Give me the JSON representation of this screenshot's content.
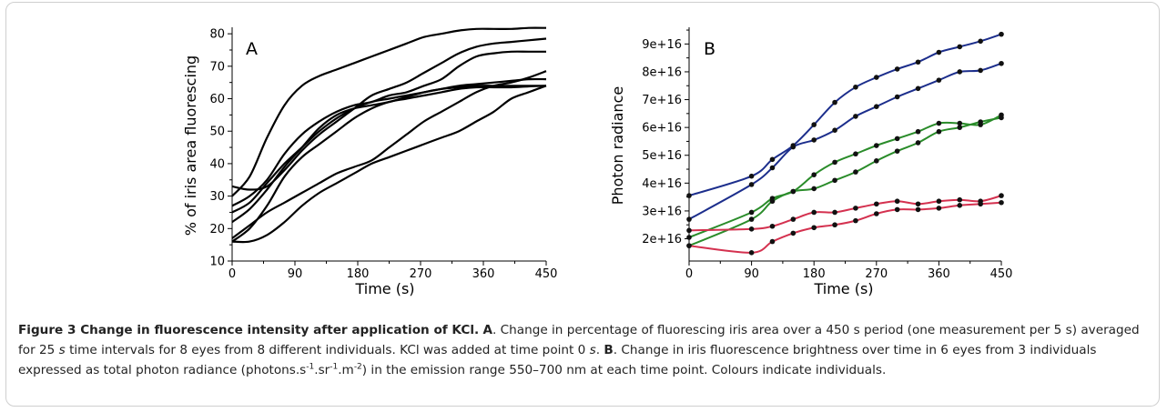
{
  "chart_data": [
    {
      "type": "line",
      "panel_label": "A",
      "xlabel": "Time (s)",
      "ylabel": "% of iris area fluorescing",
      "xlim": [
        0,
        450
      ],
      "ylim": [
        10,
        82
      ],
      "x_ticks": [
        0,
        90,
        180,
        270,
        360,
        450
      ],
      "y_ticks": [
        10,
        20,
        30,
        40,
        50,
        60,
        70,
        80
      ],
      "line_color": "#000000",
      "series": [
        {
          "x": [
            0,
            25,
            50,
            75,
            100,
            125,
            150,
            175,
            200,
            225,
            250,
            275,
            300,
            325,
            350,
            375,
            400,
            425,
            450
          ],
          "y": [
            30,
            36,
            48,
            58,
            64,
            67,
            69,
            71,
            73,
            75,
            77,
            79,
            80,
            81,
            81.5,
            81.5,
            81.5,
            81.8,
            81.8
          ]
        },
        {
          "x": [
            0,
            25,
            50,
            75,
            100,
            125,
            150,
            175,
            200,
            225,
            250,
            275,
            300,
            325,
            350,
            375,
            400,
            425,
            450
          ],
          "y": [
            33,
            32,
            33,
            38,
            44,
            49,
            53,
            57,
            61,
            63,
            65,
            68,
            71,
            74,
            76,
            77,
            77.5,
            78,
            78.5
          ]
        },
        {
          "x": [
            0,
            25,
            50,
            75,
            100,
            125,
            150,
            175,
            200,
            225,
            250,
            275,
            300,
            325,
            350,
            375,
            400,
            425,
            450
          ],
          "y": [
            27,
            30,
            35,
            43,
            49,
            53,
            56,
            58,
            59,
            61,
            62,
            64,
            66,
            70,
            73,
            74,
            74.5,
            74.5,
            74.5
          ]
        },
        {
          "x": [
            0,
            25,
            50,
            75,
            100,
            125,
            150,
            175,
            200,
            225,
            250,
            275,
            300,
            325,
            350,
            375,
            400,
            425,
            450
          ],
          "y": [
            25,
            28,
            34,
            40,
            45,
            50,
            54,
            57,
            59,
            60,
            61,
            62,
            63,
            64,
            64.5,
            65,
            65.5,
            66,
            66
          ]
        },
        {
          "x": [
            0,
            25,
            50,
            75,
            100,
            125,
            150,
            175,
            200,
            225,
            250,
            275,
            300,
            325,
            350,
            375,
            400,
            425,
            450
          ],
          "y": [
            22,
            26,
            32,
            39,
            45,
            51,
            55,
            57,
            58,
            59,
            60.5,
            62,
            63,
            63.5,
            64,
            64,
            64,
            64,
            64
          ]
        },
        {
          "x": [
            0,
            25,
            50,
            75,
            100,
            125,
            150,
            175,
            200,
            225,
            250,
            275,
            300,
            325,
            350,
            375,
            400,
            425,
            450
          ],
          "y": [
            16,
            20,
            27,
            36,
            42,
            46,
            50,
            54,
            57,
            59,
            60,
            61,
            62,
            63,
            63.5,
            63.5,
            63.5,
            63.8,
            64
          ]
        },
        {
          "x": [
            0,
            25,
            50,
            75,
            100,
            125,
            150,
            175,
            200,
            225,
            250,
            275,
            300,
            325,
            350,
            375,
            400,
            425,
            450
          ],
          "y": [
            17,
            21,
            25,
            28,
            31,
            34,
            37,
            39,
            41,
            45,
            49,
            53,
            56,
            59,
            62,
            64,
            65,
            66.5,
            68.5
          ]
        },
        {
          "x": [
            0,
            25,
            50,
            75,
            100,
            125,
            150,
            175,
            200,
            225,
            250,
            275,
            300,
            325,
            350,
            375,
            400,
            425,
            450
          ],
          "y": [
            16,
            16,
            18,
            22,
            27,
            31,
            34,
            37,
            40,
            42,
            44,
            46,
            48,
            50,
            53,
            56,
            60,
            62,
            64
          ]
        }
      ]
    },
    {
      "type": "line",
      "panel_label": "B",
      "xlabel": "Time (s)",
      "ylabel": "Photon radiance",
      "xlim": [
        0,
        450
      ],
      "ylim": [
        1.2e+16,
        9.6e+16
      ],
      "x_ticks": [
        0,
        90,
        180,
        270,
        360,
        450
      ],
      "y_ticks": [
        2e+16,
        3e+16,
        4e+16,
        5e+16,
        6e+16,
        7e+16,
        8e+16,
        9e+16
      ],
      "y_tick_labels": [
        "2e+16",
        "3e+16",
        "4e+16",
        "5e+16",
        "6e+16",
        "7e+16",
        "8e+16",
        "9e+16"
      ],
      "x_points": [
        0,
        90,
        120,
        150,
        180,
        210,
        240,
        270,
        300,
        330,
        360,
        390,
        420,
        450
      ],
      "series": [
        {
          "color": "#1c2e8c",
          "y": [
            3.55e+16,
            4.25e+16,
            4.85e+16,
            5.35e+16,
            6.1e+16,
            6.9e+16,
            7.45e+16,
            7.8e+16,
            8.1e+16,
            8.35e+16,
            8.7e+16,
            8.9e+16,
            9.1e+16,
            9.35e+16
          ]
        },
        {
          "color": "#1c2e8c",
          "y": [
            2.7e+16,
            3.95e+16,
            4.55e+16,
            5.3e+16,
            5.55e+16,
            5.9e+16,
            6.4e+16,
            6.75e+16,
            7.1e+16,
            7.4e+16,
            7.7e+16,
            8e+16,
            8.05e+16,
            8.3e+16
          ]
        },
        {
          "color": "#2a8c2a",
          "y": [
            2.05e+16,
            2.95e+16,
            3.45e+16,
            3.7e+16,
            4.3e+16,
            4.75e+16,
            5.05e+16,
            5.35e+16,
            5.6e+16,
            5.85e+16,
            6.15e+16,
            6.15e+16,
            6.1e+16,
            6.45e+16
          ]
        },
        {
          "color": "#2a8c2a",
          "y": [
            1.75e+16,
            2.7e+16,
            3.35e+16,
            3.7e+16,
            3.8e+16,
            4.1e+16,
            4.4e+16,
            4.8e+16,
            5.15e+16,
            5.45e+16,
            5.85e+16,
            6e+16,
            6.2e+16,
            6.35e+16
          ]
        },
        {
          "color": "#d4314f",
          "y": [
            2.3e+16,
            2.35e+16,
            2.45e+16,
            2.7e+16,
            2.95e+16,
            2.95e+16,
            3.1e+16,
            3.25e+16,
            3.35e+16,
            3.25e+16,
            3.35e+16,
            3.4e+16,
            3.35e+16,
            3.55e+16
          ]
        },
        {
          "color": "#d4314f",
          "y": [
            1.75e+16,
            1.5e+16,
            1.9e+16,
            2.2e+16,
            2.4e+16,
            2.5e+16,
            2.65e+16,
            2.9e+16,
            3.05e+16,
            3.05e+16,
            3.1e+16,
            3.2e+16,
            3.25e+16,
            3.3e+16
          ]
        }
      ]
    }
  ],
  "caption": {
    "bold_title": "Figure 3 Change in fluorescence intensity after application of KCl.",
    "a_label": "A",
    "a_text_1": ". Change in percentage of fluorescing iris area over a 450 s period (one measurement per 5 s) averaged for 25",
    "a_italic_s": "s",
    "a_text_2": "time intervals for 8 eyes from 8 different individuals. KCl was added at time point 0",
    "a_italic_s2": "s",
    "a_text_3": ".",
    "b_label": "B",
    "b_text_1": ". Change in iris fluorescence brightness over time in 6 eyes from 3 individuals expressed as total photon radiance (photons.s",
    "sup1": "-1",
    "mid1": ".sr",
    "sup2": "-1",
    "mid2": ".m",
    "sup3": "-2",
    "b_text_2": ") in the emission range 550–700 nm at each time point. Colours indicate individuals."
  }
}
